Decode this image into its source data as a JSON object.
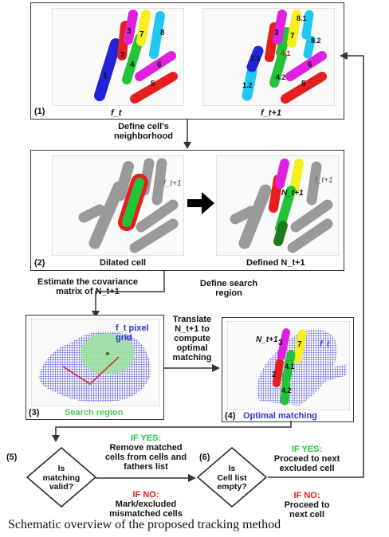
{
  "panels": {
    "p1": {
      "num": "(1)",
      "left_label": "f_t",
      "right_label": "f_t+1"
    },
    "p2": {
      "num": "(2)",
      "left_label": "Dilated cell",
      "right_label": "Defined N_t+1",
      "overlay_left": "f_t+1",
      "overlay_right": "f_t+1",
      "n_label": "N_t+1"
    },
    "p3": {
      "num": "(3)",
      "label": "Search region",
      "grid_label_1": "f_t pixel",
      "grid_label_2": "grid"
    },
    "p4": {
      "num": "(4)",
      "label": "Optimal matching",
      "n_label": "N_t+1",
      "ft_label": "f_t"
    }
  },
  "cells_t": [
    "1",
    "2",
    "3",
    "4",
    "5",
    "6",
    "7",
    "8"
  ],
  "cells_t1": [
    "1.1",
    "1.2",
    "3",
    "4.1",
    "4.2",
    "5",
    "6",
    "7",
    "8.1",
    "8.2"
  ],
  "cells_p4": [
    "3",
    "7",
    "4.1",
    "4.2",
    "2"
  ],
  "steps": {
    "neighborhood": "Define cell's neighborhood",
    "covariance_1": "Estimate the covariance",
    "covariance_2": "matrix of N_t+1",
    "search_1": "Define search",
    "search_2": "region",
    "translate_1": "Translate",
    "translate_2": "N_t+1 to",
    "translate_3": "compute",
    "translate_4": "optimal",
    "translate_5": "matching"
  },
  "decision5": {
    "num": "(5)",
    "q1": "Is",
    "q2": "matching",
    "q3": "valid?",
    "yes_tag": "IF YES:",
    "yes_1": "Remove matched",
    "yes_2": "cells from cells and",
    "yes_3": "fathers list",
    "no_tag": "IF NO:",
    "no_1": "Mark/excluded",
    "no_2": "mismatched cells"
  },
  "decision6": {
    "num": "(6)",
    "q1": "Is",
    "q2": "Cell list",
    "q3": "empty?",
    "yes_tag": "IF YES:",
    "yes_1": "Proceed to next",
    "yes_2": "excluded cell",
    "no_tag": "IF NO:",
    "no_1": "Proceed to",
    "no_2": "next cell"
  },
  "caption": "Schematic overview of the proposed tracking method",
  "colors": {
    "red": "#e61e1e",
    "green": "#22c33a",
    "blue": "#2222d8",
    "magenta": "#e020e0",
    "yellow": "#f5f020",
    "cyan": "#1ec8f0",
    "gray": "#9a9a9a"
  }
}
